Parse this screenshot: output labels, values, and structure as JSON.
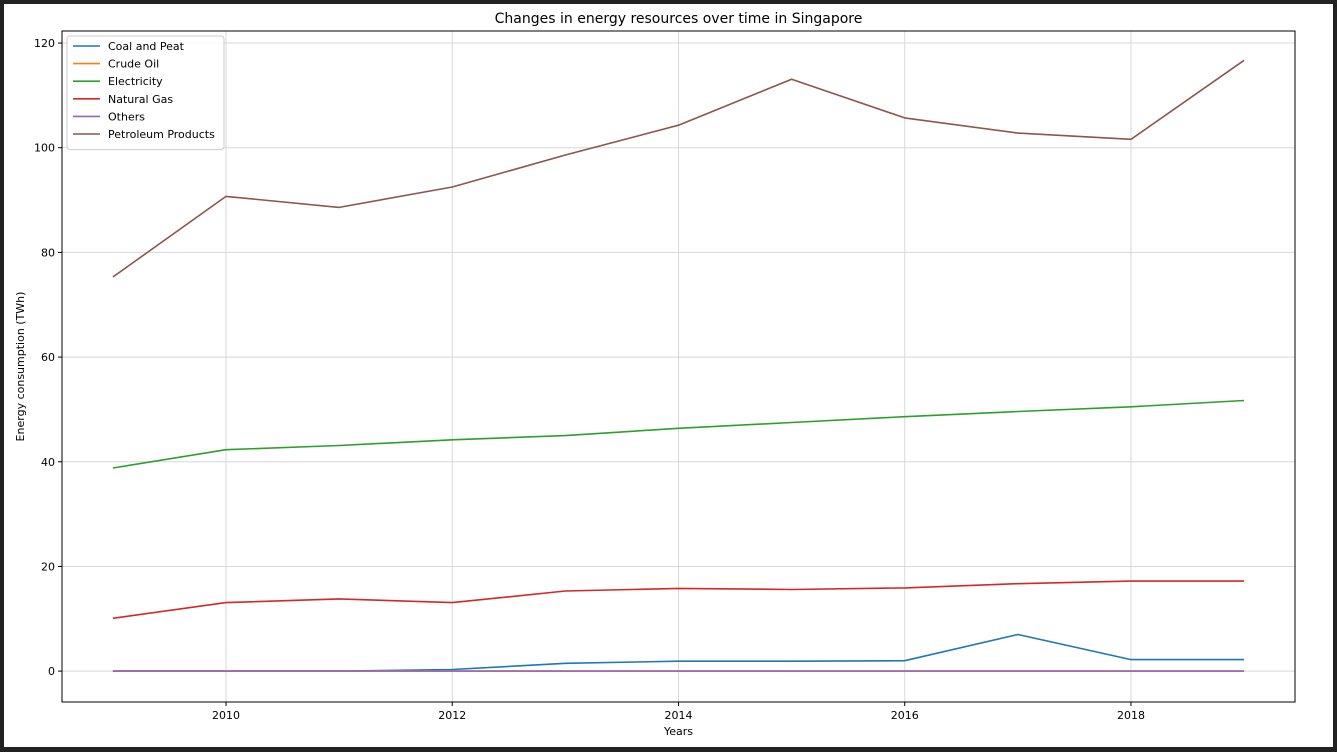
{
  "chart_data": {
    "type": "line",
    "title": "Changes in energy resources over time in Singapore",
    "xlabel": "Years",
    "ylabel": "Energy consumption (TWh)",
    "xlim": [
      2008.55,
      2019.45
    ],
    "ylim": [
      -5.9,
      122.3
    ],
    "xticks": [
      2010,
      2012,
      2014,
      2016,
      2018
    ],
    "yticks": [
      0,
      20,
      40,
      60,
      80,
      100,
      120
    ],
    "grid": true,
    "legend_position": "top-left",
    "x": [
      2009,
      2010,
      2011,
      2012,
      2013,
      2014,
      2015,
      2016,
      2017,
      2018,
      2019
    ],
    "series": [
      {
        "name": "Coal and Peat",
        "color": "#1f77b4",
        "values": [
          0.0,
          0.0,
          0.0,
          0.3,
          1.5,
          1.9,
          1.9,
          2.0,
          7.0,
          2.2,
          2.2
        ]
      },
      {
        "name": "Crude Oil",
        "color": "#ff7f0e",
        "values": [
          0.0,
          0.0,
          0.0,
          0.0,
          0.0,
          0.0,
          0.0,
          0.0,
          0.0,
          0.0,
          0.0
        ]
      },
      {
        "name": "Electricity",
        "color": "#2ca02c",
        "values": [
          38.8,
          42.3,
          43.1,
          44.2,
          45.0,
          46.4,
          47.5,
          48.6,
          49.6,
          50.5,
          51.7
        ]
      },
      {
        "name": "Natural Gas",
        "color": "#d62728",
        "values": [
          10.1,
          13.1,
          13.8,
          13.1,
          15.3,
          15.8,
          15.6,
          15.9,
          16.7,
          17.2,
          17.2
        ]
      },
      {
        "name": "Others",
        "color": "#9467bd",
        "values": [
          0.0,
          0.0,
          0.0,
          0.0,
          0.0,
          0.0,
          0.0,
          0.0,
          0.0,
          0.0,
          0.0
        ]
      },
      {
        "name": "Petroleum Products",
        "color": "#8c564b",
        "values": [
          75.3,
          90.7,
          88.6,
          92.5,
          98.6,
          104.3,
          113.1,
          105.7,
          102.8,
          101.6,
          116.7
        ]
      }
    ]
  }
}
